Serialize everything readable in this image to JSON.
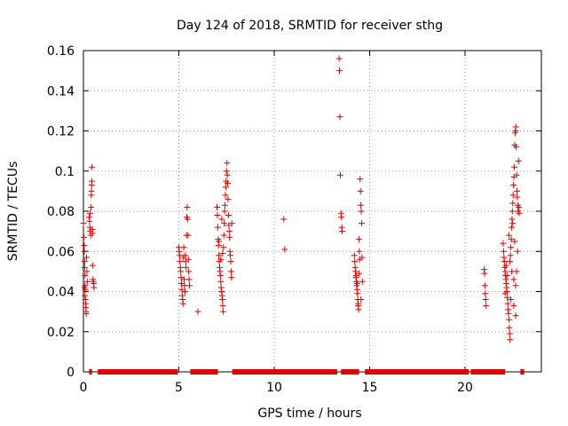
{
  "chart_data": {
    "type": "scatter",
    "title": "Day 124 of 2018, SRMTID for receiver sthg",
    "xlabel": "GPS time / hours",
    "ylabel": "SRMTID / TECUs",
    "xlim": [
      0,
      24
    ],
    "ylim": [
      0,
      0.16
    ],
    "xticks": [
      0,
      5,
      10,
      15,
      20
    ],
    "yticks": [
      0,
      0.02,
      0.04,
      0.06,
      0.08,
      0.1,
      0.12,
      0.14,
      0.16
    ],
    "xtick_labels": [
      "0",
      "5",
      "10",
      "15",
      "20"
    ],
    "ytick_labels": [
      "0",
      "0.02",
      "0.04",
      "0.06",
      "0.08",
      "0.1",
      "0.12",
      "0.14",
      "0.16"
    ],
    "grid": true,
    "color": "#e00000",
    "marker": "plus",
    "points": [
      [
        0.0,
        0.074
      ],
      [
        0.02,
        0.067
      ],
      [
        0.04,
        0.063
      ],
      [
        0.05,
        0.06
      ],
      [
        0.06,
        0.055
      ],
      [
        0.07,
        0.052
      ],
      [
        0.08,
        0.048
      ],
      [
        0.09,
        0.043
      ],
      [
        0.1,
        0.041
      ],
      [
        0.11,
        0.036
      ],
      [
        0.12,
        0.034
      ],
      [
        0.13,
        0.032
      ],
      [
        0.14,
        0.03
      ],
      [
        0.15,
        0.029
      ],
      [
        0.05,
        0.042
      ],
      [
        0.08,
        0.038
      ],
      [
        0.16,
        0.057
      ],
      [
        0.18,
        0.05
      ],
      [
        0.2,
        0.045
      ],
      [
        0.3,
        0.077
      ],
      [
        0.32,
        0.075
      ],
      [
        0.34,
        0.072
      ],
      [
        0.36,
        0.07
      ],
      [
        0.38,
        0.068
      ],
      [
        0.4,
        0.082
      ],
      [
        0.41,
        0.088
      ],
      [
        0.42,
        0.09
      ],
      [
        0.43,
        0.093
      ],
      [
        0.44,
        0.095
      ],
      [
        0.45,
        0.102
      ],
      [
        0.46,
        0.071
      ],
      [
        0.47,
        0.069
      ],
      [
        0.48,
        0.053
      ],
      [
        0.5,
        0.046
      ],
      [
        0.52,
        0.045
      ],
      [
        0.54,
        0.044
      ],
      [
        0.55,
        0.042
      ],
      [
        0.35,
        0.079
      ],
      [
        5.0,
        0.062
      ],
      [
        5.02,
        0.06
      ],
      [
        5.04,
        0.058
      ],
      [
        5.06,
        0.055
      ],
      [
        5.08,
        0.052
      ],
      [
        5.1,
        0.05
      ],
      [
        5.12,
        0.047
      ],
      [
        5.14,
        0.044
      ],
      [
        5.16,
        0.041
      ],
      [
        5.18,
        0.038
      ],
      [
        5.2,
        0.036
      ],
      [
        5.22,
        0.034
      ],
      [
        5.24,
        0.057
      ],
      [
        5.26,
        0.062
      ],
      [
        5.28,
        0.046
      ],
      [
        5.3,
        0.043
      ],
      [
        5.32,
        0.04
      ],
      [
        5.34,
        0.058
      ],
      [
        5.36,
        0.055
      ],
      [
        5.38,
        0.052
      ],
      [
        5.4,
        0.068
      ],
      [
        5.42,
        0.077
      ],
      [
        5.44,
        0.082
      ],
      [
        5.46,
        0.076
      ],
      [
        5.48,
        0.068
      ],
      [
        5.5,
        0.056
      ],
      [
        5.52,
        0.05
      ],
      [
        5.54,
        0.046
      ],
      [
        5.56,
        0.043
      ],
      [
        6.0,
        0.03
      ],
      [
        7.0,
        0.082
      ],
      [
        7.02,
        0.078
      ],
      [
        7.04,
        0.072
      ],
      [
        7.06,
        0.066
      ],
      [
        7.08,
        0.063
      ],
      [
        7.1,
        0.058
      ],
      [
        7.12,
        0.055
      ],
      [
        7.14,
        0.052
      ],
      [
        7.16,
        0.05
      ],
      [
        7.18,
        0.048
      ],
      [
        7.2,
        0.045
      ],
      [
        7.22,
        0.042
      ],
      [
        7.24,
        0.04
      ],
      [
        7.26,
        0.038
      ],
      [
        7.28,
        0.036
      ],
      [
        7.3,
        0.033
      ],
      [
        7.32,
        0.03
      ],
      [
        7.34,
        0.062
      ],
      [
        7.36,
        0.068
      ],
      [
        7.38,
        0.074
      ],
      [
        7.4,
        0.08
      ],
      [
        7.42,
        0.083
      ],
      [
        7.44,
        0.088
      ],
      [
        7.46,
        0.092
      ],
      [
        7.48,
        0.095
      ],
      [
        7.5,
        0.1
      ],
      [
        7.52,
        0.104
      ],
      [
        7.54,
        0.098
      ],
      [
        7.56,
        0.094
      ],
      [
        7.58,
        0.086
      ],
      [
        7.6,
        0.078
      ],
      [
        7.62,
        0.073
      ],
      [
        7.64,
        0.07
      ],
      [
        7.66,
        0.067
      ],
      [
        7.68,
        0.06
      ],
      [
        7.7,
        0.058
      ],
      [
        7.72,
        0.055
      ],
      [
        7.74,
        0.05
      ],
      [
        7.76,
        0.047
      ],
      [
        7.78,
        0.074
      ],
      [
        7.1,
        0.065
      ],
      [
        7.2,
        0.056
      ],
      [
        7.3,
        0.059
      ],
      [
        7.25,
        0.076
      ],
      [
        10.5,
        0.076
      ],
      [
        10.55,
        0.061
      ],
      [
        13.4,
        0.156
      ],
      [
        13.42,
        0.15
      ],
      [
        13.44,
        0.127
      ],
      [
        13.46,
        0.098
      ],
      [
        13.5,
        0.079
      ],
      [
        13.52,
        0.077
      ],
      [
        13.54,
        0.072
      ],
      [
        13.56,
        0.07
      ],
      [
        14.2,
        0.058
      ],
      [
        14.22,
        0.055
      ],
      [
        14.24,
        0.052
      ],
      [
        14.26,
        0.05
      ],
      [
        14.28,
        0.047
      ],
      [
        14.3,
        0.045
      ],
      [
        14.32,
        0.043
      ],
      [
        14.34,
        0.041
      ],
      [
        14.36,
        0.039
      ],
      [
        14.38,
        0.036
      ],
      [
        14.4,
        0.033
      ],
      [
        14.42,
        0.031
      ],
      [
        14.44,
        0.066
      ],
      [
        14.46,
        0.06
      ],
      [
        14.48,
        0.056
      ],
      [
        14.5,
        0.096
      ],
      [
        14.52,
        0.09
      ],
      [
        14.54,
        0.083
      ],
      [
        14.56,
        0.08
      ],
      [
        14.58,
        0.074
      ],
      [
        14.3,
        0.048
      ],
      [
        14.35,
        0.044
      ],
      [
        14.45,
        0.049
      ],
      [
        14.55,
        0.036
      ],
      [
        14.4,
        0.034
      ],
      [
        14.6,
        0.057
      ],
      [
        14.62,
        0.045
      ],
      [
        21.0,
        0.051
      ],
      [
        21.02,
        0.049
      ],
      [
        21.04,
        0.043
      ],
      [
        21.06,
        0.039
      ],
      [
        21.08,
        0.036
      ],
      [
        21.1,
        0.033
      ],
      [
        22.0,
        0.064
      ],
      [
        22.02,
        0.06
      ],
      [
        22.04,
        0.057
      ],
      [
        22.06,
        0.055
      ],
      [
        22.08,
        0.052
      ],
      [
        22.1,
        0.05
      ],
      [
        22.12,
        0.048
      ],
      [
        22.14,
        0.046
      ],
      [
        22.16,
        0.044
      ],
      [
        22.18,
        0.042
      ],
      [
        22.2,
        0.04
      ],
      [
        22.22,
        0.037
      ],
      [
        22.24,
        0.034
      ],
      [
        22.26,
        0.031
      ],
      [
        22.28,
        0.029
      ],
      [
        22.3,
        0.026
      ],
      [
        22.32,
        0.022
      ],
      [
        22.34,
        0.019
      ],
      [
        22.36,
        0.016
      ],
      [
        22.38,
        0.058
      ],
      [
        22.4,
        0.062
      ],
      [
        22.42,
        0.066
      ],
      [
        22.44,
        0.072
      ],
      [
        22.46,
        0.076
      ],
      [
        22.48,
        0.08
      ],
      [
        22.5,
        0.084
      ],
      [
        22.52,
        0.088
      ],
      [
        22.54,
        0.093
      ],
      [
        22.56,
        0.097
      ],
      [
        22.58,
        0.102
      ],
      [
        22.6,
        0.113
      ],
      [
        22.62,
        0.119
      ],
      [
        22.64,
        0.12
      ],
      [
        22.66,
        0.122
      ],
      [
        22.68,
        0.112
      ],
      [
        22.7,
        0.098
      ],
      [
        22.72,
        0.09
      ],
      [
        22.74,
        0.087
      ],
      [
        22.76,
        0.083
      ],
      [
        22.78,
        0.08
      ],
      [
        22.8,
        0.105
      ],
      [
        22.82,
        0.082
      ],
      [
        22.84,
        0.079
      ],
      [
        22.3,
        0.068
      ],
      [
        22.35,
        0.055
      ],
      [
        22.45,
        0.05
      ],
      [
        22.55,
        0.046
      ],
      [
        22.65,
        0.043
      ],
      [
        22.7,
        0.05
      ],
      [
        22.75,
        0.06
      ],
      [
        22.6,
        0.065
      ],
      [
        22.5,
        0.074
      ],
      [
        22.4,
        0.036
      ],
      [
        22.55,
        0.033
      ],
      [
        22.65,
        0.028
      ],
      [
        22.2,
        0.048
      ],
      [
        22.15,
        0.053
      ],
      [
        22.1,
        0.039
      ]
    ],
    "zero_segments": [
      [
        0.3,
        0.45
      ],
      [
        0.75,
        4.95
      ],
      [
        5.6,
        7.05
      ],
      [
        7.8,
        13.3
      ],
      [
        13.5,
        14.45
      ],
      [
        14.75,
        20.2
      ],
      [
        20.3,
        22.1
      ],
      [
        22.9,
        23.1
      ]
    ]
  }
}
